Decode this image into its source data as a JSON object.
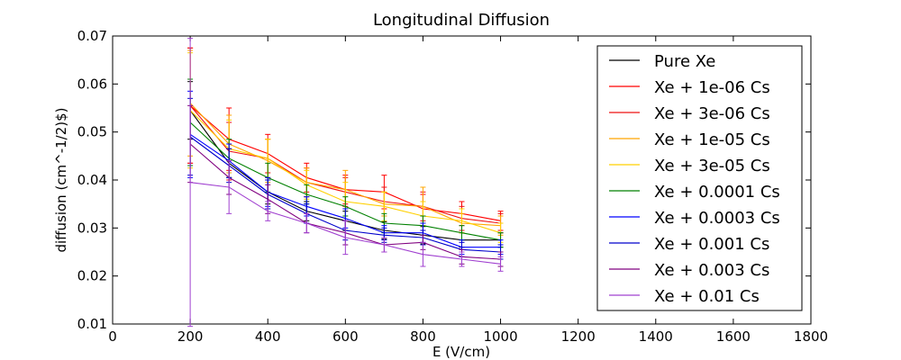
{
  "chart_data": {
    "type": "line",
    "title": "Longitudinal Diffusion",
    "xlabel": "E (V/cm)",
    "ylabel": "diffusion (cm^-1/2)$)",
    "xlim": [
      0,
      1800
    ],
    "ylim": [
      0.01,
      0.07
    ],
    "xticks": [
      "0",
      "200",
      "400",
      "600",
      "800",
      "1000",
      "1200",
      "1400",
      "1600",
      "1800"
    ],
    "yticks": [
      "0.01",
      "0.02",
      "0.03",
      "0.04",
      "0.05",
      "0.06",
      "0.07"
    ],
    "grid": false,
    "legend_position": "top-right",
    "error_bars": true,
    "x": [
      200,
      300,
      400,
      500,
      600,
      700,
      800,
      900,
      1000
    ],
    "series": [
      {
        "name": "Pure Xe",
        "color": "#000000",
        "values": [
          0.0545,
          0.0435,
          0.0375,
          0.0335,
          0.0315,
          0.0295,
          0.0285,
          0.0275,
          0.0275
        ],
        "errors": [
          0.006,
          0.003,
          0.0025,
          0.002,
          0.002,
          0.0018,
          0.0018,
          0.0015,
          0.0015
        ]
      },
      {
        "name": "Xe + 1e-06 Cs",
        "color": "#ff0000",
        "values": [
          0.0555,
          0.0485,
          0.0455,
          0.0405,
          0.038,
          0.0375,
          0.034,
          0.033,
          0.0315
        ],
        "errors": [
          0.012,
          0.0065,
          0.004,
          0.003,
          0.003,
          0.0035,
          0.003,
          0.0025,
          0.002
        ]
      },
      {
        "name": "Xe + 3e-06 Cs",
        "color": "#ee1111",
        "values": [
          0.0555,
          0.046,
          0.0445,
          0.0395,
          0.0375,
          0.0355,
          0.0345,
          0.032,
          0.031
        ],
        "errors": [
          0.012,
          0.006,
          0.004,
          0.003,
          0.003,
          0.003,
          0.003,
          0.0025,
          0.002
        ]
      },
      {
        "name": "Xe + 1e-05 Cs",
        "color": "#ffa500",
        "values": [
          0.056,
          0.0475,
          0.044,
          0.0395,
          0.038,
          0.035,
          0.0345,
          0.031,
          0.0305
        ],
        "errors": [
          0.011,
          0.006,
          0.0045,
          0.003,
          0.004,
          0.0025,
          0.004,
          0.002,
          0.002
        ]
      },
      {
        "name": "Xe + 3e-05 Cs",
        "color": "#ffd000",
        "values": [
          0.0545,
          0.0465,
          0.0445,
          0.039,
          0.0355,
          0.0345,
          0.0325,
          0.0315,
          0.029
        ],
        "errors": [
          0.012,
          0.006,
          0.004,
          0.003,
          0.004,
          0.003,
          0.003,
          0.0025,
          0.002
        ]
      },
      {
        "name": "Xe + 0.0001 Cs",
        "color": "#008000",
        "values": [
          0.052,
          0.0445,
          0.0405,
          0.037,
          0.0345,
          0.031,
          0.0305,
          0.029,
          0.0275
        ],
        "errors": [
          0.009,
          0.004,
          0.003,
          0.002,
          0.002,
          0.002,
          0.002,
          0.0015,
          0.0015
        ]
      },
      {
        "name": "Xe + 0.0003 Cs",
        "color": "#0000ff",
        "values": [
          0.0495,
          0.044,
          0.0375,
          0.0345,
          0.032,
          0.029,
          0.029,
          0.026,
          0.026
        ],
        "errors": [
          0.009,
          0.0035,
          0.003,
          0.002,
          0.002,
          0.0015,
          0.002,
          0.0015,
          0.0015
        ]
      },
      {
        "name": "Xe + 0.001 Cs",
        "color": "#0000cc",
        "values": [
          0.049,
          0.043,
          0.037,
          0.033,
          0.0295,
          0.0285,
          0.028,
          0.0255,
          0.025
        ],
        "errors": [
          0.008,
          0.0035,
          0.003,
          0.002,
          0.002,
          0.0015,
          0.0015,
          0.0015,
          0.0015
        ]
      },
      {
        "name": "Xe + 0.003 Cs",
        "color": "#800080",
        "values": [
          0.0475,
          0.0405,
          0.036,
          0.031,
          0.029,
          0.0265,
          0.027,
          0.024,
          0.0235
        ],
        "errors": [
          0.008,
          0.0035,
          0.003,
          0.002,
          0.0025,
          0.0015,
          0.0015,
          0.0015,
          0.0015
        ]
      },
      {
        "name": "Xe + 0.01 Cs",
        "color": "#a040d0",
        "values": [
          0.0395,
          0.0385,
          0.0335,
          0.031,
          0.028,
          0.0265,
          0.0245,
          0.0235,
          0.0225
        ],
        "errors": [
          0.03,
          0.0055,
          0.002,
          0.002,
          0.0035,
          0.0015,
          0.0025,
          0.0015,
          0.0015
        ]
      }
    ]
  }
}
